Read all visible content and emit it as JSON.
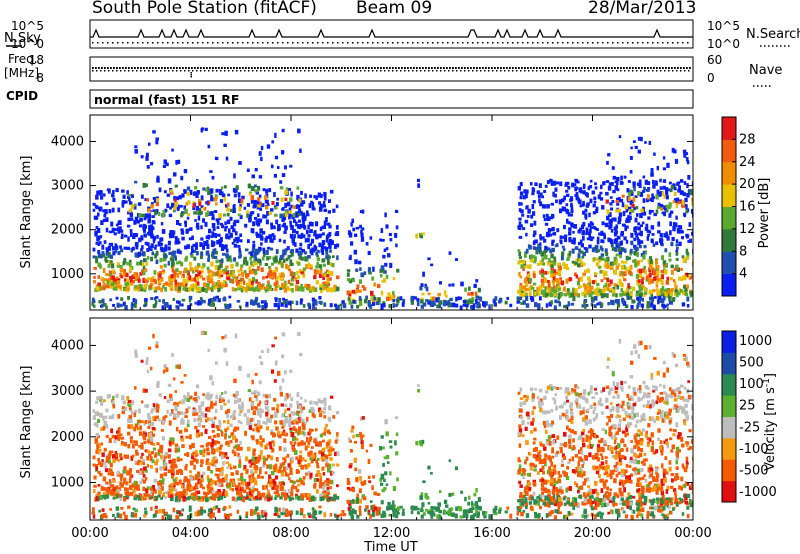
{
  "header": {
    "station": "South Pole Station (fitACF)",
    "beam": "Beam 09",
    "date": "28/Mar/2013"
  },
  "panels": {
    "nsky": {
      "label": "N.Sky",
      "tick_top": "10^5",
      "tick_bottom": "10^0"
    },
    "nsearch": {
      "label": "N.Search",
      "tick_top": "10^5",
      "tick_bottom": "10^0"
    },
    "freq": {
      "label_line1": "Freq.",
      "label_line2": "[MHz]",
      "tick_top": "18",
      "tick_bottom": "8"
    },
    "nave": {
      "label": "Nave",
      "tick_top": "60",
      "tick_bottom": "0"
    },
    "cpid": {
      "label": "CPID",
      "value": "normal (fast) 151 RF"
    }
  },
  "colors": {
    "power": [
      "#0a1ef0",
      "#1f4fb0",
      "#2f7a3a",
      "#5aa830",
      "#e8c000",
      "#f08c00",
      "#f25a10",
      "#e01818"
    ],
    "velocity": [
      "#e01010",
      "#f55a00",
      "#f39a10",
      "#bdbdbd",
      "#5cb030",
      "#2a8a50",
      "#1e4aa8",
      "#0a20e0"
    ]
  },
  "chart_data": [
    {
      "type": "heatmap",
      "title": "Power",
      "xlabel": "Time UT",
      "ylabel": "Slant Range [km]",
      "xlim": [
        "00:00",
        "24:00"
      ],
      "x_ticks": [
        "00:00",
        "04:00",
        "08:00",
        "12:00",
        "16:00",
        "20:00",
        "00:00"
      ],
      "ylim": [
        180,
        4600
      ],
      "y_ticks": [
        1000,
        2000,
        3000,
        4000
      ],
      "colorbar": {
        "label": "Power [dB]",
        "range": [
          0,
          32
        ],
        "ticks": [
          4,
          8,
          12,
          16,
          20,
          24,
          28
        ]
      },
      "echo_regions": [
        {
          "time_start": "00:00",
          "time_end": "09:45",
          "range_km": [
            600,
            2100
          ],
          "value_db": 22
        },
        {
          "time_start": "11:30",
          "time_end": "12:00",
          "range_km": [
            400,
            600
          ],
          "value_db": 14
        },
        {
          "time_start": "17:00",
          "time_end": "24:00",
          "range_km": [
            500,
            2300
          ],
          "value_db": 18
        }
      ]
    },
    {
      "type": "heatmap",
      "title": "Velocity",
      "xlabel": "Time UT",
      "ylabel": "Slant Range [km]",
      "xlim": [
        "00:00",
        "24:00"
      ],
      "x_ticks": [
        "00:00",
        "04:00",
        "08:00",
        "12:00",
        "16:00",
        "20:00",
        "00:00"
      ],
      "ylim": [
        180,
        4600
      ],
      "y_ticks": [
        1000,
        2000,
        3000,
        4000
      ],
      "colorbar": {
        "label": "Velocity [m s^-1]",
        "ticks": [
          "1000",
          "500",
          "100",
          "25",
          "-25",
          "-100",
          "-500",
          "-1000"
        ]
      },
      "echo_regions": [
        {
          "time_start": "00:00",
          "time_end": "09:45",
          "range_km": [
            600,
            2100
          ],
          "value_ms": -200
        },
        {
          "time_start": "12:00",
          "time_end": "14:00",
          "range_km": [
            300,
            900
          ],
          "value_ms": 150
        },
        {
          "time_start": "17:00",
          "time_end": "24:00",
          "range_km": [
            500,
            2300
          ],
          "value_ms": -150
        }
      ]
    }
  ]
}
